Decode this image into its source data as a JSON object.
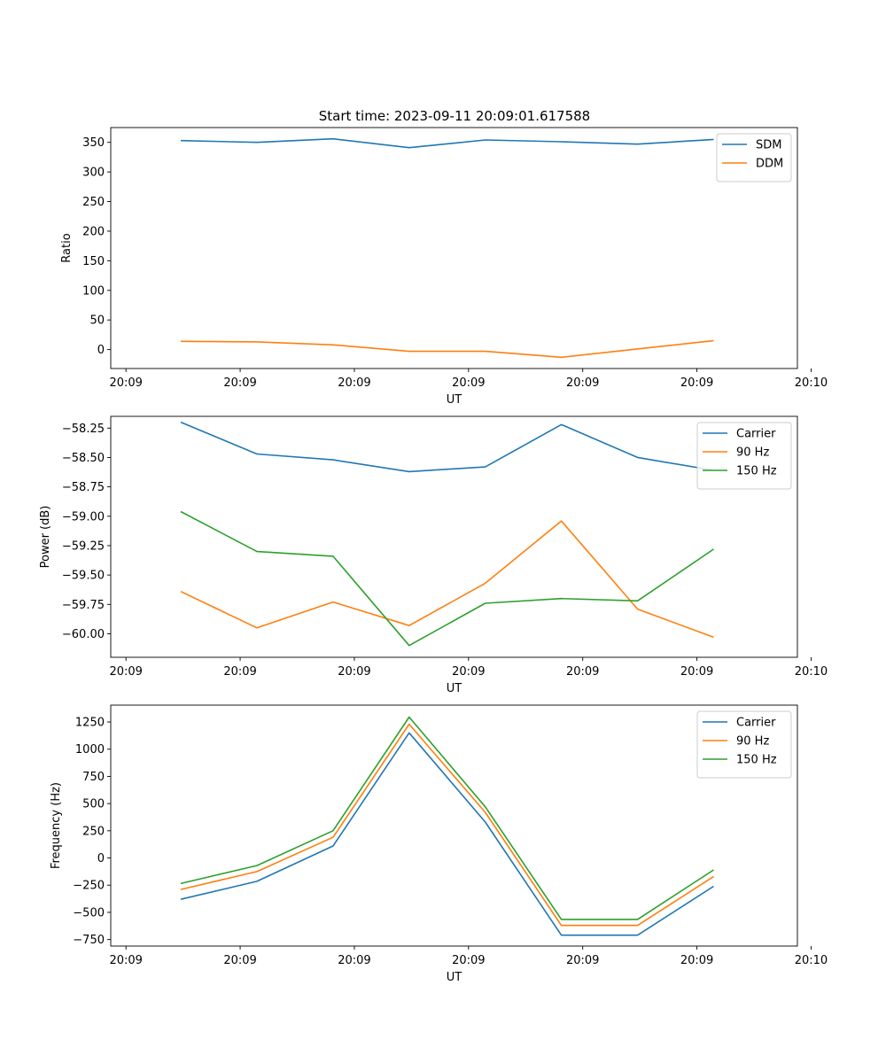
{
  "title": "Start time: 2023-09-11 20:09:01.617588",
  "chart_data": [
    {
      "type": "line",
      "xlabel": "UT",
      "ylabel": "Ratio",
      "x": [
        0.4,
        0.5,
        0.6,
        0.7,
        0.8,
        0.9,
        1.0,
        1.1
      ],
      "xlim": [
        0.308,
        1.21
      ],
      "xticks": [
        0.328,
        0.478,
        0.628,
        0.778,
        0.928,
        1.078,
        1.228
      ],
      "xtick_labels": [
        "20:09",
        "20:09",
        "20:09",
        "20:09",
        "20:09",
        "20:09",
        "20:10"
      ],
      "ylim": [
        -32,
        375
      ],
      "yticks": [
        0,
        50,
        100,
        150,
        200,
        250,
        300,
        350
      ],
      "ytick_labels": [
        "0",
        "50",
        "100",
        "150",
        "200",
        "250",
        "300",
        "350"
      ],
      "legend": "top-right",
      "series": [
        {
          "name": "SDM",
          "color": "#1f77b4",
          "values": [
            353,
            350,
            356,
            341,
            354,
            351,
            347,
            355
          ]
        },
        {
          "name": "DDM",
          "color": "#ff7f0e",
          "values": [
            14,
            13,
            8,
            -3,
            -3,
            -13,
            1,
            15
          ]
        }
      ]
    },
    {
      "type": "line",
      "xlabel": "UT",
      "ylabel": "Power (dB)",
      "x": [
        0.4,
        0.5,
        0.6,
        0.7,
        0.8,
        0.9,
        1.0,
        1.1
      ],
      "xlim": [
        0.308,
        1.21
      ],
      "xticks": [
        0.328,
        0.478,
        0.628,
        0.778,
        0.928,
        1.078,
        1.228
      ],
      "xtick_labels": [
        "20:09",
        "20:09",
        "20:09",
        "20:09",
        "20:09",
        "20:09",
        "20:10"
      ],
      "ylim": [
        -60.2,
        -58.15
      ],
      "yticks": [
        -60.0,
        -59.75,
        -59.5,
        -59.25,
        -59.0,
        -58.75,
        -58.5,
        -58.25
      ],
      "ytick_labels": [
        "−60.00",
        "−59.75",
        "−59.50",
        "−59.25",
        "−59.00",
        "−58.75",
        "−58.50",
        "−58.25"
      ],
      "legend": "top-right",
      "series": [
        {
          "name": "Carrier",
          "color": "#1f77b4",
          "values": [
            -58.2,
            -58.47,
            -58.52,
            -58.62,
            -58.58,
            -58.22,
            -58.5,
            -58.61
          ]
        },
        {
          "name": "90 Hz",
          "color": "#ff7f0e",
          "values": [
            -59.64,
            -59.95,
            -59.73,
            -59.93,
            -59.57,
            -59.04,
            -59.79,
            -60.03
          ]
        },
        {
          "name": "150 Hz",
          "color": "#2ca02c",
          "values": [
            -58.96,
            -59.3,
            -59.34,
            -60.1,
            -59.74,
            -59.7,
            -59.72,
            -59.28
          ]
        }
      ]
    },
    {
      "type": "line",
      "xlabel": "UT",
      "ylabel": "Frequency (Hz)",
      "x": [
        0.4,
        0.5,
        0.6,
        0.7,
        0.8,
        0.9,
        1.0,
        1.1
      ],
      "xlim": [
        0.308,
        1.21
      ],
      "xticks": [
        0.328,
        0.478,
        0.628,
        0.778,
        0.928,
        1.078,
        1.228
      ],
      "xtick_labels": [
        "20:09",
        "20:09",
        "20:09",
        "20:09",
        "20:09",
        "20:09",
        "20:10"
      ],
      "ylim": [
        -810,
        1405
      ],
      "yticks": [
        -750,
        -500,
        -250,
        0,
        250,
        500,
        750,
        1000,
        1250
      ],
      "ytick_labels": [
        "−750",
        "−500",
        "−250",
        "0",
        "250",
        "500",
        "750",
        "1000",
        "1250"
      ],
      "legend": "top-right",
      "series": [
        {
          "name": "Carrier",
          "color": "#1f77b4",
          "values": [
            -380,
            -215,
            110,
            1150,
            330,
            -710,
            -710,
            -260
          ]
        },
        {
          "name": "90 Hz",
          "color": "#ff7f0e",
          "values": [
            -290,
            -125,
            190,
            1230,
            420,
            -620,
            -620,
            -170
          ]
        },
        {
          "name": "150 Hz",
          "color": "#2ca02c",
          "values": [
            -235,
            -70,
            250,
            1295,
            470,
            -565,
            -565,
            -110
          ]
        }
      ]
    }
  ]
}
